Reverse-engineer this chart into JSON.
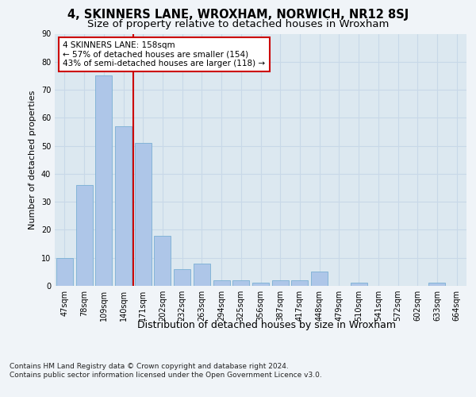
{
  "title": "4, SKINNERS LANE, WROXHAM, NORWICH, NR12 8SJ",
  "subtitle": "Size of property relative to detached houses in Wroxham",
  "xlabel": "Distribution of detached houses by size in Wroxham",
  "ylabel": "Number of detached properties",
  "bar_values": [
    10,
    36,
    75,
    57,
    51,
    18,
    6,
    8,
    2,
    2,
    1,
    2,
    2,
    5,
    0,
    1,
    0,
    0,
    0,
    1,
    0
  ],
  "bar_labels": [
    "47sqm",
    "78sqm",
    "109sqm",
    "140sqm",
    "171sqm",
    "202sqm",
    "232sqm",
    "263sqm",
    "294sqm",
    "325sqm",
    "356sqm",
    "387sqm",
    "417sqm",
    "448sqm",
    "479sqm",
    "510sqm",
    "541sqm",
    "572sqm",
    "602sqm",
    "633sqm",
    "664sqm"
  ],
  "bar_color": "#aec6e8",
  "bar_edge_color": "#7aafd4",
  "vline_x": 3.5,
  "vline_color": "#cc0000",
  "annotation_text": "4 SKINNERS LANE: 158sqm\n← 57% of detached houses are smaller (154)\n43% of semi-detached houses are larger (118) →",
  "annotation_box_color": "#ffffff",
  "annotation_box_edge": "#cc0000",
  "ylim": [
    0,
    90
  ],
  "yticks": [
    0,
    10,
    20,
    30,
    40,
    50,
    60,
    70,
    80,
    90
  ],
  "grid_color": "#c8d8e8",
  "bg_color": "#dce8f0",
  "fig_bg_color": "#f0f4f8",
  "footer": "Contains HM Land Registry data © Crown copyright and database right 2024.\nContains public sector information licensed under the Open Government Licence v3.0.",
  "title_fontsize": 10.5,
  "subtitle_fontsize": 9.5,
  "xlabel_fontsize": 9,
  "ylabel_fontsize": 8,
  "tick_fontsize": 7,
  "footer_fontsize": 6.5,
  "ann_fontsize": 7.5
}
